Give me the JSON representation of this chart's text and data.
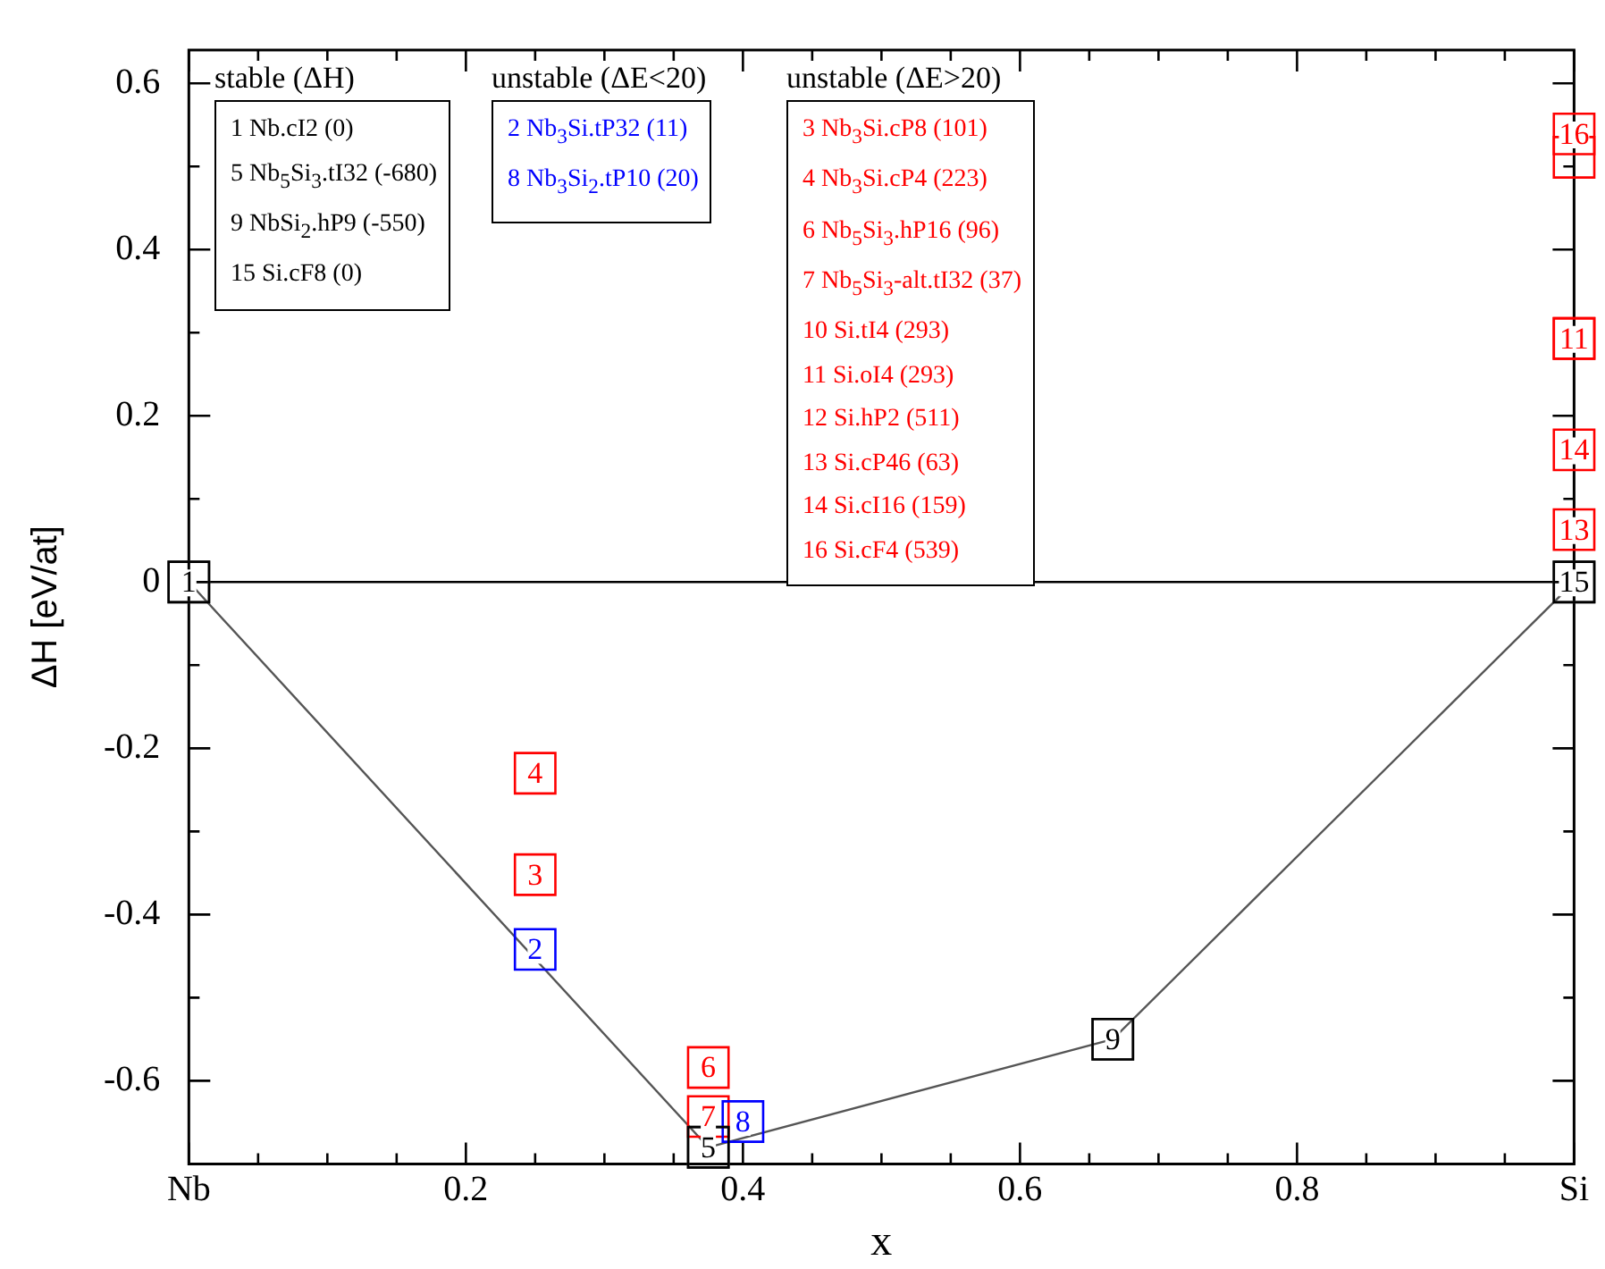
{
  "chart_data": {
    "type": "scatter",
    "xlabel": "x",
    "ylabel": "ΔH [eV/at]",
    "xlim": [
      0,
      1
    ],
    "ylim": [
      -0.7,
      0.64
    ],
    "xticks": [
      {
        "value": 0,
        "label": "Nb"
      },
      {
        "value": 0.05,
        "label": null
      },
      {
        "value": 0.1,
        "label": null
      },
      {
        "value": 0.15,
        "label": null
      },
      0.2,
      {
        "value": 0.25,
        "label": null
      },
      {
        "value": 0.3,
        "label": null
      },
      {
        "value": 0.35,
        "label": null
      },
      0.4,
      {
        "value": 0.45,
        "label": null
      },
      {
        "value": 0.5,
        "label": null
      },
      {
        "value": 0.55,
        "label": null
      },
      0.6,
      {
        "value": 0.65,
        "label": null
      },
      {
        "value": 0.7,
        "label": null
      },
      {
        "value": 0.75,
        "label": null
      },
      0.8,
      {
        "value": 0.85,
        "label": null
      },
      {
        "value": 0.9,
        "label": null
      },
      {
        "value": 0.95,
        "label": null
      },
      {
        "value": 1,
        "label": "Si"
      }
    ],
    "yticks": [
      -0.6,
      {
        "value": -0.5,
        "label": null
      },
      -0.4,
      {
        "value": -0.3,
        "label": null
      },
      -0.2,
      {
        "value": -0.1,
        "label": null
      },
      0,
      {
        "value": 0.1,
        "label": null
      },
      0.2,
      {
        "value": 0.3,
        "label": null
      },
      0.4,
      {
        "value": 0.5,
        "label": null
      },
      0.6
    ],
    "grid": false,
    "marker": "square",
    "ref_lines": [
      {
        "axis": "y",
        "value": 0,
        "color": "#000000"
      }
    ],
    "series": [
      {
        "type": "line",
        "color": "#555555",
        "x": [
          0,
          0.375,
          0.667,
          1
        ],
        "values": [
          0,
          -0.68,
          -0.55,
          0
        ]
      },
      {
        "color": "#000000",
        "x": [
          0,
          0.375,
          0.667,
          1
        ],
        "values": [
          0,
          -0.68,
          -0.55,
          0
        ]
      },
      {
        "color": "#0000ff",
        "x": [
          0.25,
          0.4
        ],
        "values": [
          -0.442,
          -0.649
        ]
      },
      {
        "color": "#ff0000",
        "x": [
          0.25,
          0.25,
          0.375,
          0.375,
          1,
          1,
          1,
          1,
          1,
          1
        ],
        "values": [
          -0.352,
          -0.23,
          -0.584,
          -0.643,
          0.293,
          0.293,
          0.511,
          0.063,
          0.159,
          0.539
        ]
      }
    ],
    "annotations": [
      {
        "text": "1",
        "x": 0,
        "y": 0
      },
      {
        "text": "5",
        "x": 0.375,
        "y": -0.68
      },
      {
        "text": "9",
        "x": 0.667,
        "y": -0.55
      },
      {
        "text": "15",
        "x": 1,
        "y": 0
      },
      {
        "text": "2",
        "x": 0.25,
        "y": -0.442
      },
      {
        "text": "8",
        "x": 0.4,
        "y": -0.649
      },
      {
        "text": "3",
        "x": 0.25,
        "y": -0.352
      },
      {
        "text": "4",
        "x": 0.25,
        "y": -0.23
      },
      {
        "text": "6",
        "x": 0.375,
        "y": -0.584
      },
      {
        "text": "7",
        "x": 0.375,
        "y": -0.643
      },
      {
        "text": "11",
        "x": 1,
        "y": 0.293
      },
      {
        "text": "13",
        "x": 1,
        "y": 0.063
      },
      {
        "text": "14",
        "x": 1,
        "y": 0.159
      },
      {
        "text": "16",
        "x": 1,
        "y": 0.539
      },
      "stable (ΔH)",
      "1 Nb.cI2 (0)",
      "5 Nb$_{5}$Si$_{3}$.tI32 (-680)",
      "9 NbSi$_{2}$.hP9 (-550)",
      "15 Si.cF8 (0)",
      "unstable (ΔE<20)",
      "2 Nb$_{3}$Si.tP32 (11)",
      "8 Nb$_{3}$Si$_{2}$.tP10 (20)",
      "unstable (ΔE>20)",
      "3 Nb$_{3}$Si.cP8 (101)",
      "4 Nb$_{3}$Si.cP4 (223)",
      "6 Nb$_{5}$Si$_{3}$.hP16 (96)",
      "7 Nb$_{5}$Si$_{3}$-alt.tI32 (37)",
      "10 Si.tI4 (293)",
      "11 Si.oI4 (293)",
      "12 Si.hP2 (511)",
      "13 Si.cP46 (63)",
      "14 Si.cI16 (159)",
      "16 Si.cF4 (539)"
    ]
  }
}
